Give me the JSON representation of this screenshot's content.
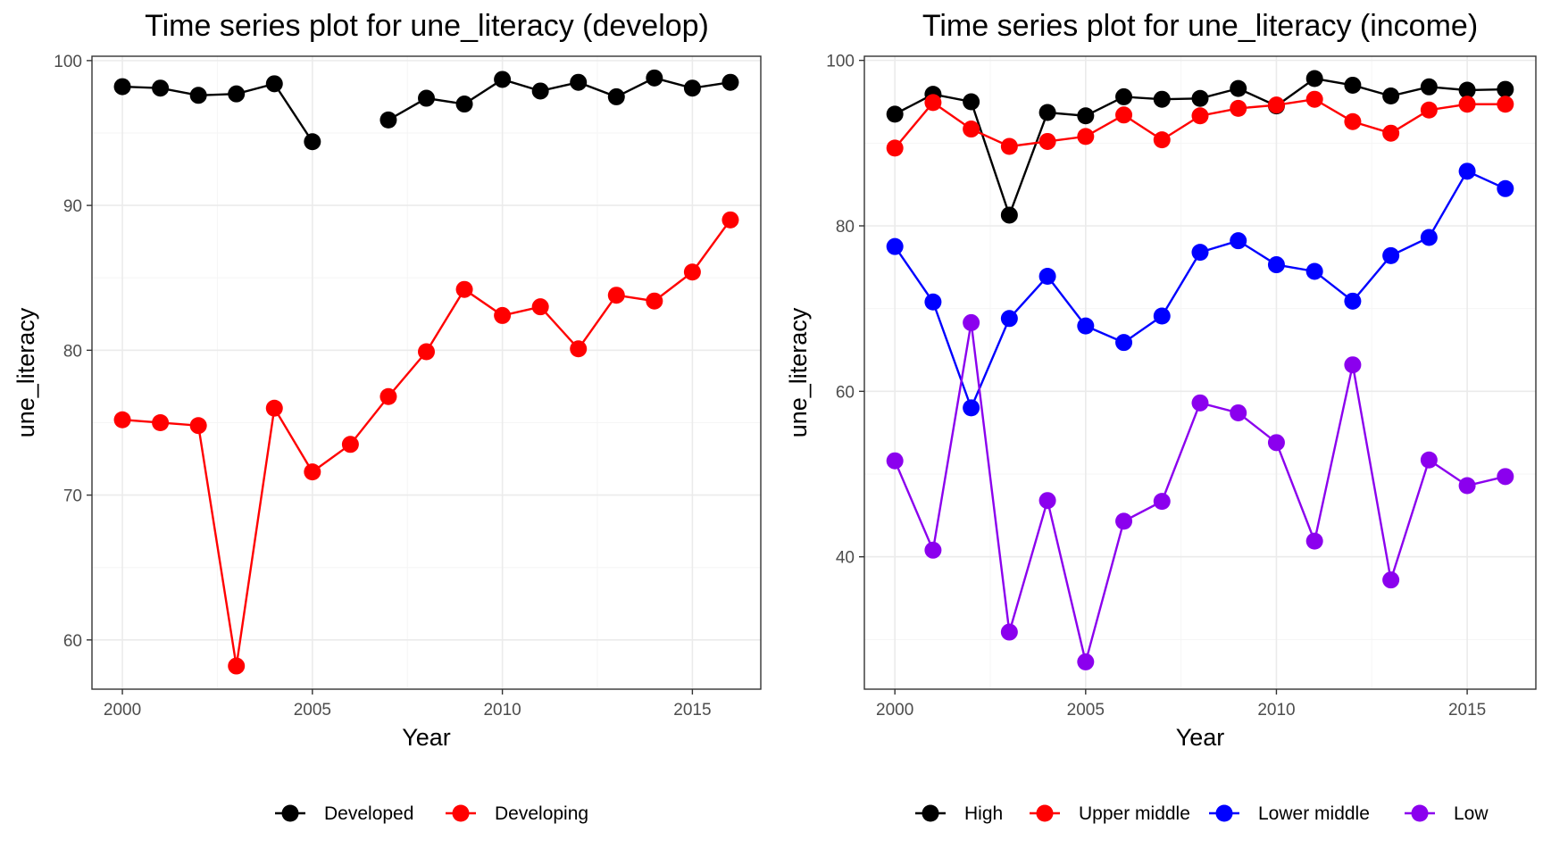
{
  "chart_data": [
    {
      "type": "line",
      "title": "Time series plot for une_literacy (develop)",
      "xlabel": "Year",
      "ylabel": "une_literacy",
      "xlim": [
        1999.2,
        2016.8
      ],
      "ylim": [
        56.6,
        100.3
      ],
      "x_ticks": [
        2000,
        2005,
        2010,
        2015
      ],
      "y_ticks": [
        60,
        70,
        80,
        90,
        100
      ],
      "grid": true,
      "legend_position": "bottom",
      "x": [
        2000,
        2001,
        2002,
        2003,
        2004,
        2005,
        2006,
        2007,
        2008,
        2009,
        2010,
        2011,
        2012,
        2013,
        2014,
        2015,
        2016
      ],
      "series": [
        {
          "name": "Developed",
          "color": "#000000",
          "values": [
            98.2,
            98.1,
            97.6,
            97.7,
            98.4,
            94.4,
            null,
            95.9,
            97.4,
            97.0,
            98.7,
            97.9,
            98.5,
            97.5,
            98.8,
            98.1,
            98.5
          ]
        },
        {
          "name": "Developing",
          "color": "#ff0000",
          "values": [
            75.2,
            75.0,
            74.8,
            58.2,
            76.0,
            71.6,
            73.5,
            76.8,
            79.9,
            84.2,
            82.4,
            83.0,
            80.1,
            83.8,
            83.4,
            85.4,
            89.0
          ]
        }
      ]
    },
    {
      "type": "line",
      "title": "Time series plot for une_literacy (income)",
      "xlabel": "Year",
      "ylabel": "une_literacy",
      "xlim": [
        1999.2,
        2016.8
      ],
      "ylim": [
        24,
        100.5
      ],
      "x_ticks": [
        2000,
        2005,
        2010,
        2015
      ],
      "y_ticks": [
        40,
        60,
        80,
        100
      ],
      "grid": true,
      "legend_position": "bottom",
      "x": [
        2000,
        2001,
        2002,
        2003,
        2004,
        2005,
        2006,
        2007,
        2008,
        2009,
        2010,
        2011,
        2012,
        2013,
        2014,
        2015,
        2016
      ],
      "series": [
        {
          "name": "High",
          "color": "#000000",
          "values": [
            93.5,
            95.9,
            95.0,
            81.3,
            93.7,
            93.3,
            95.6,
            95.3,
            95.4,
            96.6,
            94.5,
            97.8,
            97.0,
            95.7,
            96.8,
            96.4,
            96.5
          ]
        },
        {
          "name": "Upper middle",
          "color": "#ff0000",
          "values": [
            89.4,
            94.9,
            91.7,
            89.6,
            90.2,
            90.8,
            93.4,
            90.4,
            93.3,
            94.2,
            94.6,
            95.3,
            92.6,
            91.2,
            94.0,
            94.7,
            94.7
          ]
        },
        {
          "name": "Lower middle",
          "color": "#0000ff",
          "values": [
            77.5,
            70.8,
            58.0,
            68.8,
            73.9,
            67.9,
            65.9,
            69.1,
            76.8,
            78.2,
            75.3,
            74.5,
            70.9,
            76.4,
            78.6,
            86.6,
            84.5
          ]
        },
        {
          "name": "Low",
          "color": "#8b00ee",
          "values": [
            51.6,
            40.8,
            68.3,
            30.9,
            46.8,
            27.3,
            44.3,
            46.7,
            58.6,
            57.4,
            53.8,
            41.9,
            63.2,
            37.2,
            51.7,
            48.6,
            49.7
          ]
        }
      ]
    }
  ]
}
